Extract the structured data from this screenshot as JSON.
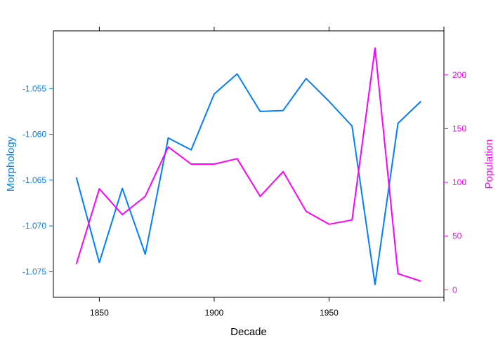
{
  "chart_data": {
    "type": "line",
    "title": "",
    "xlabel": "Decade",
    "ylabel_left": "Morphology",
    "ylabel_right": "Population",
    "xlim": [
      1830,
      2000
    ],
    "ylim_left": [
      -1.0778,
      -1.0487
    ],
    "ylim_right": [
      -7,
      241
    ],
    "x_ticks": [
      1850,
      1900,
      1950
    ],
    "y_ticks_left": [
      -1.075,
      -1.07,
      -1.065,
      -1.06,
      -1.055
    ],
    "y_ticks_left_labels": [
      "-1.075",
      "-1.070",
      "-1.065",
      "-1.060",
      "-1.055"
    ],
    "y_ticks_right": [
      0,
      50,
      100,
      150,
      200
    ],
    "grid": false,
    "legend": "none",
    "x": [
      1840,
      1850,
      1860,
      1870,
      1880,
      1890,
      1900,
      1910,
      1920,
      1930,
      1940,
      1950,
      1960,
      1970,
      1980,
      1990
    ],
    "series": [
      {
        "axis": "left",
        "color": "#0080ff",
        "values": [
          -1.0647,
          -1.074,
          -1.0659,
          -1.0731,
          -1.0604,
          -1.0617,
          -1.0556,
          -1.0534,
          -1.0575,
          -1.0574,
          -1.0539,
          -1.0564,
          -1.0591,
          -1.0764,
          -1.0588,
          -1.0564
        ]
      },
      {
        "axis": "right",
        "color": "#ff00ff",
        "values": [
          24,
          94,
          70,
          87,
          133,
          117,
          117,
          122,
          87,
          110,
          73,
          61,
          65,
          225,
          15,
          8
        ]
      }
    ]
  }
}
